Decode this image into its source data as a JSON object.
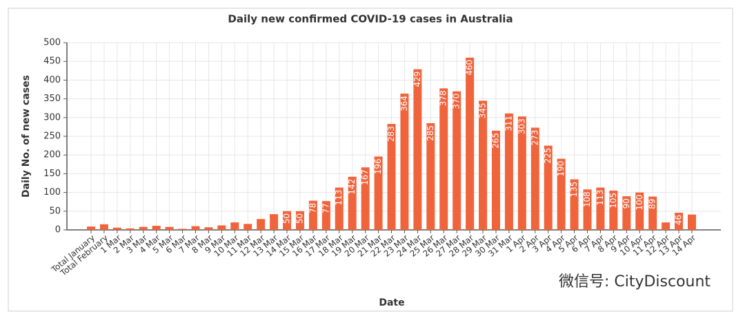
{
  "chart_data": {
    "type": "bar",
    "title": "Daily new confirmed COVID-19 cases in Australia",
    "xlabel": "Date",
    "ylabel": "Daily No. of new cases",
    "watermark": "微信号: CityDiscount",
    "categories": [
      "Total January",
      "Total February",
      "1 Mar",
      "2 Mar",
      "3 Mar",
      "4 Mar",
      "5 Mar",
      "6 Mar",
      "7 Mar",
      "8 Mar",
      "9 Mar",
      "10 Mar",
      "11 Mar",
      "12 Mar",
      "13 Mar",
      "14 Mar",
      "15 Mar",
      "16 Mar",
      "17 Mar",
      "18 Mar",
      "19 Mar",
      "20 Mar",
      "21 Mar",
      "22 Mar",
      "23 Mar",
      "24 Mar",
      "25 Mar",
      "26 Mar",
      "27 Mar",
      "28 Mar",
      "29 Mar",
      "30 Mar",
      "31 Mar",
      "1 Apr",
      "2 Apr",
      "3 Apr",
      "4 Apr",
      "5 Apr",
      "6 Apr",
      "7 Apr",
      "8 Apr",
      "9 Apr",
      "10 Apr",
      "11 Apr",
      "12 Apr",
      "13 Apr",
      "14 Apr"
    ],
    "values": [
      9,
      15,
      6,
      4,
      8,
      11,
      8,
      3,
      10,
      7,
      12,
      20,
      16,
      29,
      42,
      50,
      50,
      78,
      77,
      113,
      142,
      167,
      196,
      283,
      364,
      429,
      285,
      378,
      370,
      460,
      345,
      265,
      311,
      303,
      273,
      225,
      190,
      135,
      108,
      113,
      105,
      90,
      100,
      89,
      20,
      46,
      41
    ],
    "color": "#f0643c",
    "ylim": [
      0,
      500
    ],
    "yticks": [
      0,
      50,
      100,
      150,
      200,
      250,
      300,
      350,
      400,
      450,
      500
    ],
    "grid": true
  }
}
